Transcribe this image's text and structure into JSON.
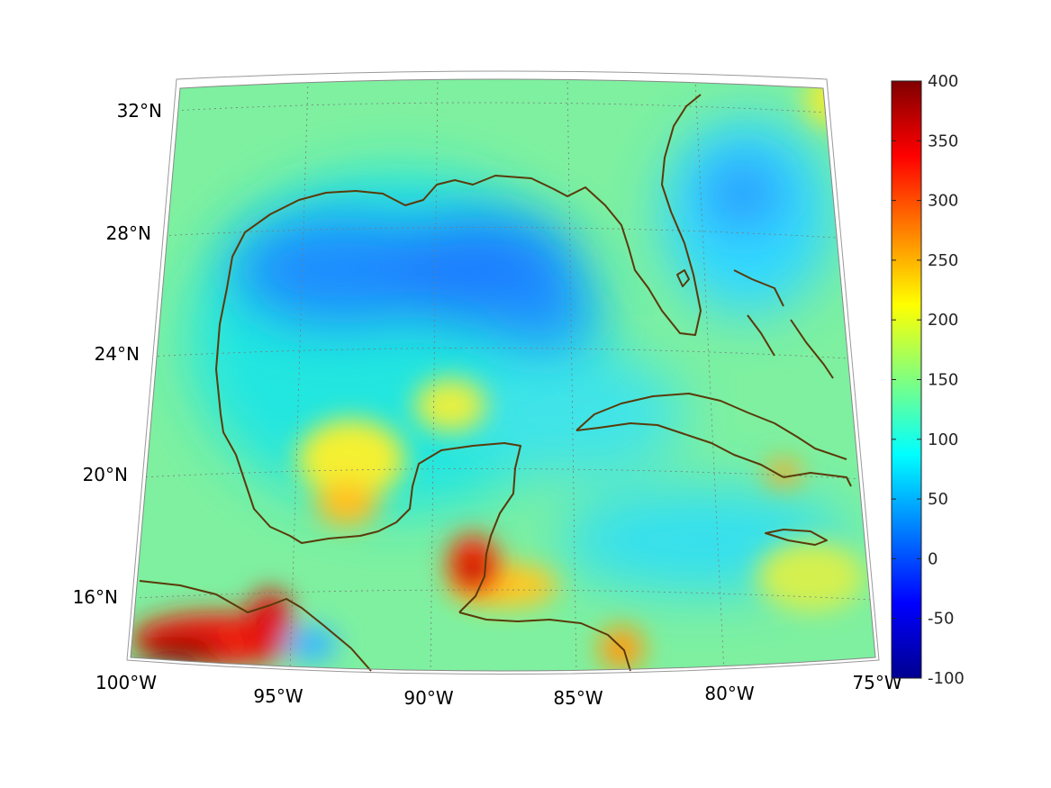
{
  "map": {
    "projection": "conic",
    "lon_range": [
      -100,
      -75
    ],
    "lat_range": [
      14.5,
      33
    ],
    "lat_labels": [
      "16°N",
      "20°N",
      "24°N",
      "28°N",
      "32°N"
    ],
    "lon_labels": [
      "100°W",
      "95°W",
      "90°W",
      "85°W",
      "80°W",
      "75°W"
    ],
    "coastline_color": "#5a3a0a",
    "grid": "dotted"
  },
  "colorbar": {
    "colormap": "jet",
    "range": [
      -100,
      400
    ],
    "ticks": [
      "400",
      "350",
      "300",
      "250",
      "200",
      "150",
      "100",
      "50",
      "0",
      "-50",
      "-100"
    ]
  }
}
